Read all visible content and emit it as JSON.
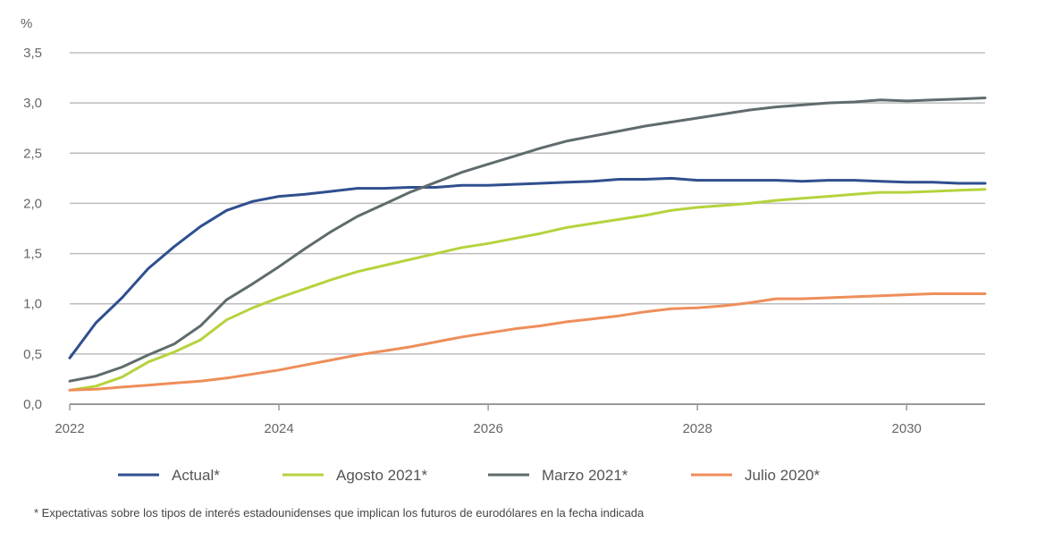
{
  "chart_data": {
    "type": "line",
    "y_unit": "%",
    "ylim": [
      0,
      3.5
    ],
    "y_ticks": [
      {
        "value": 0,
        "label": "0,0"
      },
      {
        "value": 0.5,
        "label": "0,5"
      },
      {
        "value": 1.0,
        "label": "1,0"
      },
      {
        "value": 1.5,
        "label": "1,5"
      },
      {
        "value": 2.0,
        "label": "2,0"
      },
      {
        "value": 2.5,
        "label": "2,5"
      },
      {
        "value": 3.0,
        "label": "3,0"
      },
      {
        "value": 3.5,
        "label": "3,5"
      }
    ],
    "xlim": [
      2022,
      2030.75
    ],
    "x_ticks": [
      {
        "value": 2022,
        "label": "2022"
      },
      {
        "value": 2024,
        "label": "2024"
      },
      {
        "value": 2026,
        "label": "2026"
      },
      {
        "value": 2028,
        "label": "2028"
      },
      {
        "value": 2030,
        "label": "2030"
      }
    ],
    "grid": "horizontal",
    "legend_position": "bottom",
    "series": [
      {
        "name": "Actual*",
        "color": "#2f4f8f",
        "points": [
          [
            2022,
            0.46
          ],
          [
            2022.25,
            0.81
          ],
          [
            2022.5,
            1.06
          ],
          [
            2022.75,
            1.35
          ],
          [
            2023,
            1.57
          ],
          [
            2023.25,
            1.77
          ],
          [
            2023.5,
            1.93
          ],
          [
            2023.75,
            2.02
          ],
          [
            2024,
            2.07
          ],
          [
            2024.25,
            2.09
          ],
          [
            2024.5,
            2.12
          ],
          [
            2024.75,
            2.15
          ],
          [
            2025,
            2.15
          ],
          [
            2025.25,
            2.16
          ],
          [
            2025.5,
            2.16
          ],
          [
            2025.75,
            2.18
          ],
          [
            2026,
            2.18
          ],
          [
            2026.25,
            2.19
          ],
          [
            2026.5,
            2.2
          ],
          [
            2026.75,
            2.21
          ],
          [
            2027,
            2.22
          ],
          [
            2027.25,
            2.24
          ],
          [
            2027.5,
            2.24
          ],
          [
            2027.75,
            2.25
          ],
          [
            2028,
            2.23
          ],
          [
            2028.25,
            2.23
          ],
          [
            2028.5,
            2.23
          ],
          [
            2028.75,
            2.23
          ],
          [
            2029,
            2.22
          ],
          [
            2029.25,
            2.23
          ],
          [
            2029.5,
            2.23
          ],
          [
            2029.75,
            2.22
          ],
          [
            2030,
            2.21
          ],
          [
            2030.25,
            2.21
          ],
          [
            2030.5,
            2.2
          ],
          [
            2030.75,
            2.2
          ]
        ]
      },
      {
        "name": "Agosto 2021*",
        "color": "#b5d33d",
        "points": [
          [
            2022,
            0.14
          ],
          [
            2022.25,
            0.18
          ],
          [
            2022.5,
            0.27
          ],
          [
            2022.75,
            0.42
          ],
          [
            2023,
            0.52
          ],
          [
            2023.25,
            0.64
          ],
          [
            2023.5,
            0.84
          ],
          [
            2023.75,
            0.96
          ],
          [
            2024,
            1.06
          ],
          [
            2024.25,
            1.15
          ],
          [
            2024.5,
            1.24
          ],
          [
            2024.75,
            1.32
          ],
          [
            2025,
            1.38
          ],
          [
            2025.25,
            1.44
          ],
          [
            2025.5,
            1.5
          ],
          [
            2025.75,
            1.56
          ],
          [
            2026,
            1.6
          ],
          [
            2026.25,
            1.65
          ],
          [
            2026.5,
            1.7
          ],
          [
            2026.75,
            1.76
          ],
          [
            2027,
            1.8
          ],
          [
            2027.25,
            1.84
          ],
          [
            2027.5,
            1.88
          ],
          [
            2027.75,
            1.93
          ],
          [
            2028,
            1.96
          ],
          [
            2028.25,
            1.98
          ],
          [
            2028.5,
            2.0
          ],
          [
            2028.75,
            2.03
          ],
          [
            2029,
            2.05
          ],
          [
            2029.25,
            2.07
          ],
          [
            2029.5,
            2.09
          ],
          [
            2029.75,
            2.11
          ],
          [
            2030,
            2.11
          ],
          [
            2030.25,
            2.12
          ],
          [
            2030.5,
            2.13
          ],
          [
            2030.75,
            2.14
          ]
        ]
      },
      {
        "name": "Marzo 2021*",
        "color": "#5f6b6d",
        "points": [
          [
            2022,
            0.23
          ],
          [
            2022.25,
            0.28
          ],
          [
            2022.5,
            0.37
          ],
          [
            2022.75,
            0.49
          ],
          [
            2023,
            0.6
          ],
          [
            2023.25,
            0.78
          ],
          [
            2023.5,
            1.04
          ],
          [
            2023.75,
            1.2
          ],
          [
            2024,
            1.37
          ],
          [
            2024.25,
            1.55
          ],
          [
            2024.5,
            1.72
          ],
          [
            2024.75,
            1.87
          ],
          [
            2025,
            1.99
          ],
          [
            2025.25,
            2.11
          ],
          [
            2025.5,
            2.21
          ],
          [
            2025.75,
            2.31
          ],
          [
            2026,
            2.39
          ],
          [
            2026.25,
            2.47
          ],
          [
            2026.5,
            2.55
          ],
          [
            2026.75,
            2.62
          ],
          [
            2027,
            2.67
          ],
          [
            2027.25,
            2.72
          ],
          [
            2027.5,
            2.77
          ],
          [
            2027.75,
            2.81
          ],
          [
            2028,
            2.85
          ],
          [
            2028.25,
            2.89
          ],
          [
            2028.5,
            2.93
          ],
          [
            2028.75,
            2.96
          ],
          [
            2029,
            2.98
          ],
          [
            2029.25,
            3.0
          ],
          [
            2029.5,
            3.01
          ],
          [
            2029.75,
            3.03
          ],
          [
            2030,
            3.02
          ],
          [
            2030.25,
            3.03
          ],
          [
            2030.5,
            3.04
          ],
          [
            2030.75,
            3.05
          ]
        ]
      },
      {
        "name": "Julio 2020*",
        "color": "#ee8e5a",
        "points": [
          [
            2022,
            0.14
          ],
          [
            2022.25,
            0.15
          ],
          [
            2022.5,
            0.17
          ],
          [
            2022.75,
            0.19
          ],
          [
            2023,
            0.21
          ],
          [
            2023.25,
            0.23
          ],
          [
            2023.5,
            0.26
          ],
          [
            2023.75,
            0.3
          ],
          [
            2024,
            0.34
          ],
          [
            2024.25,
            0.39
          ],
          [
            2024.5,
            0.44
          ],
          [
            2024.75,
            0.49
          ],
          [
            2025,
            0.53
          ],
          [
            2025.25,
            0.57
          ],
          [
            2025.5,
            0.62
          ],
          [
            2025.75,
            0.67
          ],
          [
            2026,
            0.71
          ],
          [
            2026.25,
            0.75
          ],
          [
            2026.5,
            0.78
          ],
          [
            2026.75,
            0.82
          ],
          [
            2027,
            0.85
          ],
          [
            2027.25,
            0.88
          ],
          [
            2027.5,
            0.92
          ],
          [
            2027.75,
            0.95
          ],
          [
            2028,
            0.96
          ],
          [
            2028.25,
            0.98
          ],
          [
            2028.5,
            1.01
          ],
          [
            2028.75,
            1.05
          ],
          [
            2029,
            1.05
          ],
          [
            2029.25,
            1.06
          ],
          [
            2029.5,
            1.07
          ],
          [
            2029.75,
            1.08
          ],
          [
            2030,
            1.09
          ],
          [
            2030.25,
            1.1
          ],
          [
            2030.5,
            1.1
          ],
          [
            2030.75,
            1.1
          ]
        ]
      }
    ],
    "footnote": "* Expectativas sobre los tipos de interés estadounidenses que implican los futuros de eurodólares en la fecha indicada"
  }
}
